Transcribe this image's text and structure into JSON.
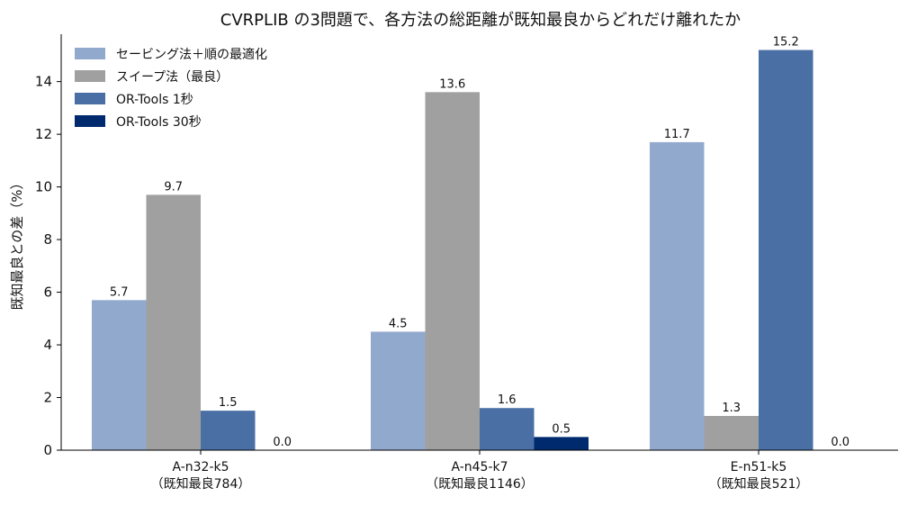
{
  "chart_data": {
    "type": "bar",
    "title": "CVRPLIB の3問題で、各方法の総距離が既知最良からどれだけ離れたか",
    "xlabel": "",
    "ylabel": "既知最良との差（%）",
    "ylim": [
      0,
      15.8
    ],
    "yticks": [
      0,
      2,
      4,
      6,
      8,
      10,
      12,
      14
    ],
    "grid": false,
    "legend_position": "top-left",
    "categories": [
      [
        "A-n32-k5",
        "（既知最良784）"
      ],
      [
        "A-n45-k7",
        "（既知最良1146）"
      ],
      [
        "E-n51-k5",
        "（既知最良521）"
      ]
    ],
    "series": [
      {
        "name": "セービング法＋順の最適化",
        "color": "#92a9ce",
        "values": [
          5.7,
          4.5,
          11.7
        ],
        "labels": [
          "5.7",
          "4.5",
          "11.7"
        ]
      },
      {
        "name": "スイープ法（最良）",
        "color": "#a0a0a0",
        "values": [
          9.7,
          13.6,
          1.3
        ],
        "labels": [
          "9.7",
          "13.6",
          "1.3"
        ]
      },
      {
        "name": "OR-Tools 1秒",
        "color": "#4a6fa5",
        "values": [
          1.5,
          1.6,
          15.2
        ],
        "labels": [
          "1.5",
          "1.6",
          "15.2"
        ]
      },
      {
        "name": "OR-Tools 30秒",
        "color": "#002a6e",
        "values": [
          0.0,
          0.5,
          0.0
        ],
        "labels": [
          "0.0",
          "0.5",
          "0.0"
        ]
      }
    ]
  }
}
